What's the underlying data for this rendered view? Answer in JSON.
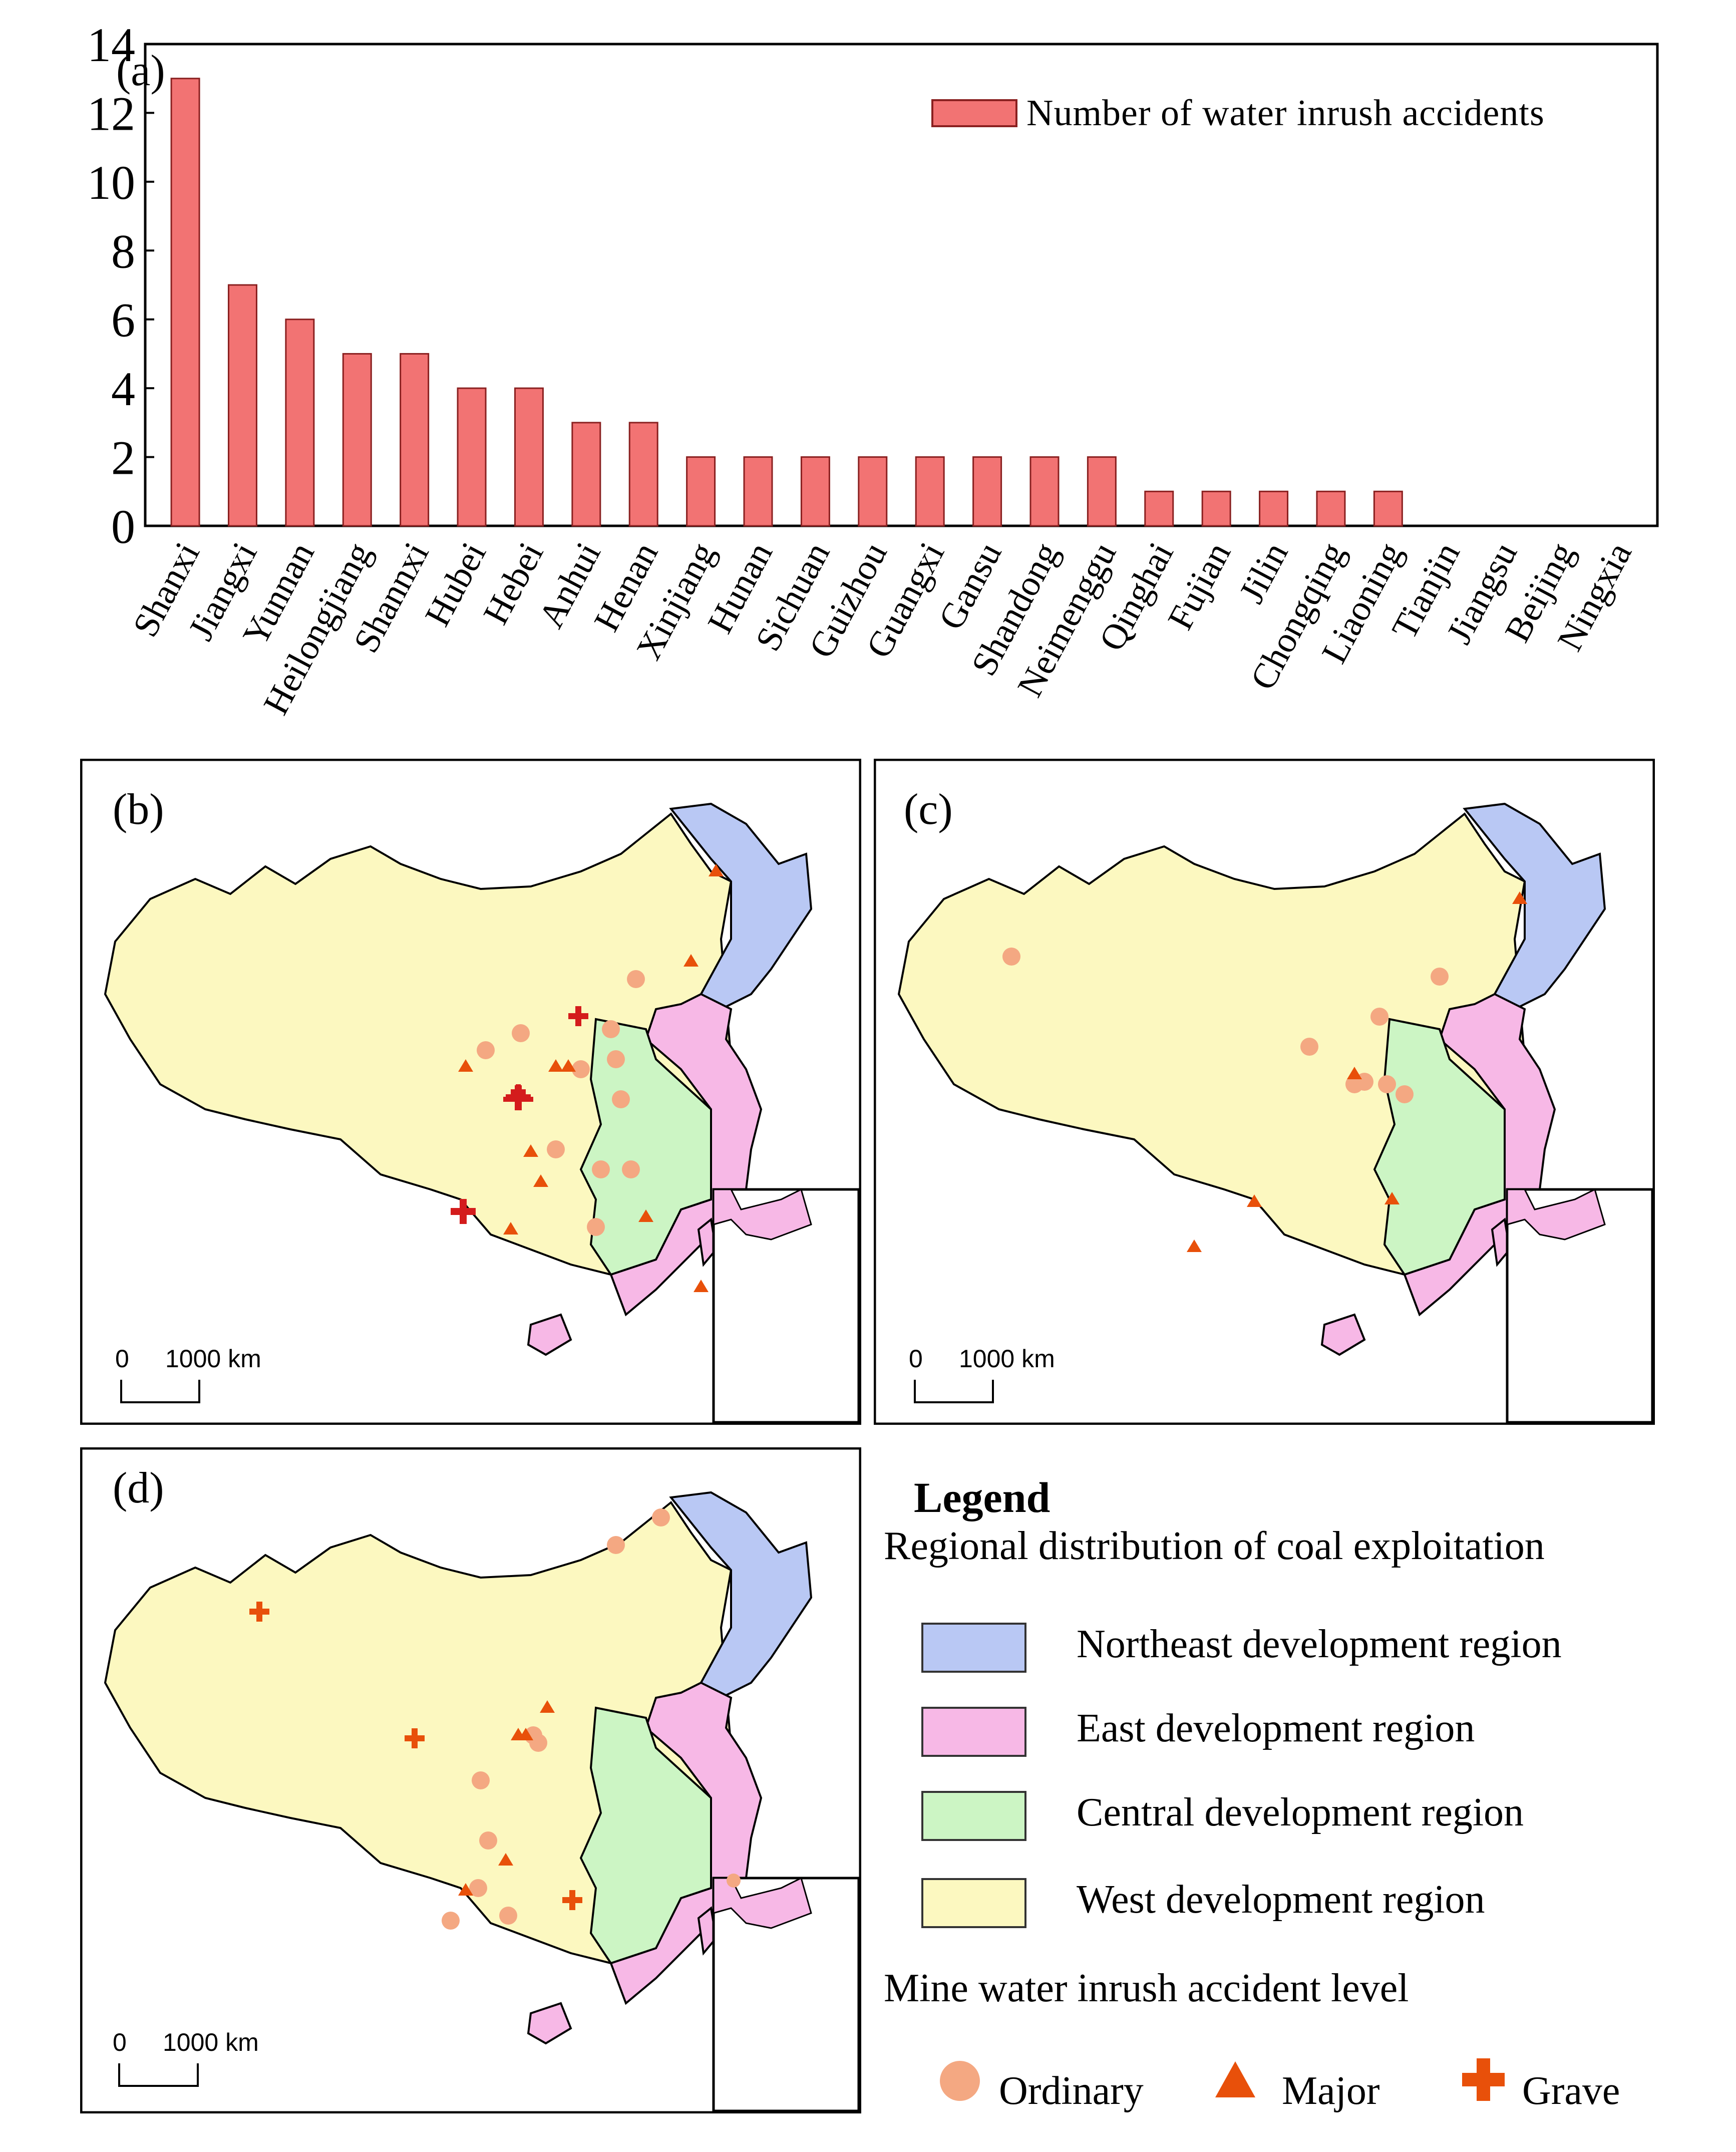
{
  "chart_data": [
    {
      "type": "bar",
      "panel_label": "(a)",
      "categories": [
        "Shanxi",
        "Jiangxi",
        "Yunnan",
        "Heilongjiang",
        "Shannxi",
        "Hubei",
        "Hebei",
        "Anhui",
        "Henan",
        "Xinjiang",
        "Hunan",
        "Sichuan",
        "Guizhou",
        "Guangxi",
        "Gansu",
        "Shandong",
        "Neimenggu",
        "Qinghai",
        "Fujian",
        "Jilin",
        "Chongqing",
        "Liaoning",
        "Tianjin",
        "Jiangsu",
        "Beijing",
        "Ningxia"
      ],
      "series": [
        {
          "name": "Number of water inrush accidents",
          "values": [
            13,
            7,
            6,
            5,
            5,
            4,
            4,
            3,
            3,
            2,
            2,
            2,
            2,
            2,
            2,
            2,
            2,
            1,
            1,
            1,
            1,
            1,
            0,
            0,
            0,
            0
          ]
        }
      ],
      "yticks": [
        "0",
        "2",
        "4",
        "6",
        "8",
        "10",
        "12",
        "14"
      ],
      "ylim": [
        0,
        14
      ],
      "legend_position": "top-right",
      "colors": {
        "bar": "#f27373",
        "bar_edge": "#8a2020"
      }
    }
  ],
  "maps": {
    "b": {
      "label": "(b)",
      "scale_zero": "0",
      "scale_text": "1000 km"
    },
    "c": {
      "label": "(c)",
      "scale_zero": "0",
      "scale_text": "1000 km"
    },
    "d": {
      "label": "(d)",
      "scale_zero": "0",
      "scale_text": "1000 km"
    }
  },
  "legend": {
    "title": "Legend",
    "regions_title": "Regional distribution of coal exploitation",
    "regions": [
      {
        "label": "Northeast development region",
        "color": "#b9c8f4"
      },
      {
        "label": "East development region",
        "color": "#f7b8e6"
      },
      {
        "label": "Central development region",
        "color": "#ccf5c4"
      },
      {
        "label": "West development region",
        "color": "#fcf8c0"
      }
    ],
    "levels_title": "Mine water inrush accident level",
    "levels": [
      {
        "label": "Ordinary",
        "icon": "circle-icon",
        "color": "#f4a882"
      },
      {
        "label": "Major",
        "icon": "triangle-icon",
        "color": "#e8500a"
      },
      {
        "label": "Grave",
        "icon": "cross-icon",
        "color": "#e8500a"
      }
    ]
  }
}
